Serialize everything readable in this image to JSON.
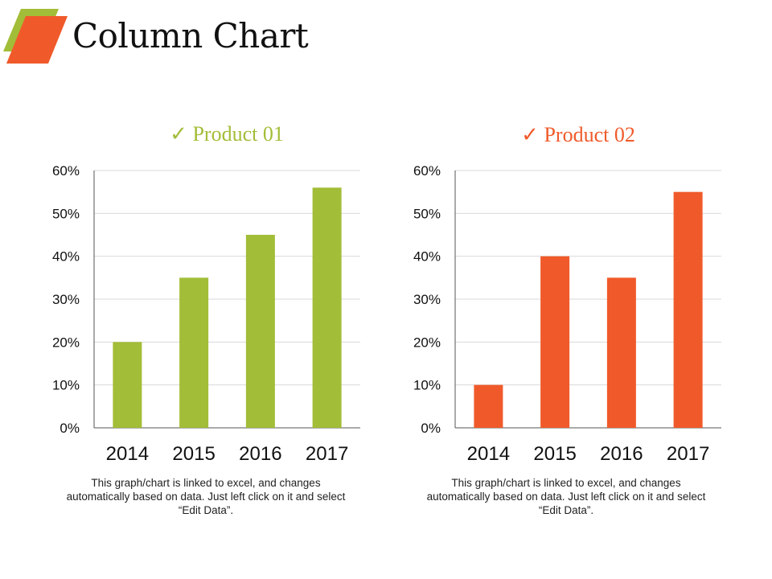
{
  "title": "Column Chart",
  "colors": {
    "green": "#A2BD37",
    "orange": "#F05A2A"
  },
  "chart_data": [
    {
      "type": "bar",
      "title": "Product 01",
      "title_icon": "check-icon",
      "color": "#A2BD37",
      "categories": [
        "2014",
        "2015",
        "2016",
        "2017"
      ],
      "values": [
        20,
        35,
        45,
        56
      ],
      "ylim": [
        0,
        60
      ],
      "yticks": [
        "0%",
        "10%",
        "20%",
        "30%",
        "40%",
        "50%",
        "60%"
      ],
      "grid": true,
      "legend": "none",
      "note": "This graph/chart is linked to excel, and changes automatically based on data. Just left click on it and select “Edit Data”."
    },
    {
      "type": "bar",
      "title": "Product 02",
      "title_icon": "check-icon",
      "color": "#F05A2A",
      "categories": [
        "2014",
        "2015",
        "2016",
        "2017"
      ],
      "values": [
        10,
        40,
        35,
        55
      ],
      "ylim": [
        0,
        60
      ],
      "yticks": [
        "0%",
        "10%",
        "20%",
        "30%",
        "40%",
        "50%",
        "60%"
      ],
      "grid": true,
      "legend": "none",
      "note": "This graph/chart is linked to excel, and changes automatically based on data. Just left click on it and select “Edit Data”."
    }
  ]
}
